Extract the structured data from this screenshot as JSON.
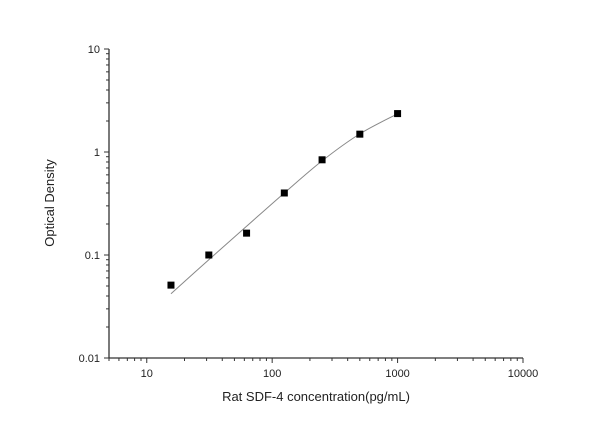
{
  "chart_data": {
    "type": "scatter",
    "title": "",
    "xlabel": "Rat SDF-4 concentration(pg/mL)",
    "ylabel": "Optical Density",
    "x_scale": "log",
    "y_scale": "log",
    "xlim": [
      5,
      10000
    ],
    "ylim": [
      0.01,
      10
    ],
    "x_ticks": [
      10,
      100,
      1000,
      10000
    ],
    "x_tick_labels": [
      "10",
      "100",
      "1000",
      "10000"
    ],
    "y_ticks": [
      0.01,
      0.1,
      1,
      10
    ],
    "y_tick_labels": [
      "0.01",
      "0.1",
      "1",
      "10"
    ],
    "grid": false,
    "series": [
      {
        "marker": "square",
        "color": "#000000",
        "x": [
          15.6,
          31.25,
          62.5,
          125,
          250,
          500,
          1000
        ],
        "y": [
          0.051,
          0.1,
          0.163,
          0.4,
          0.84,
          1.49,
          2.36
        ]
      }
    ],
    "fit_curve": {
      "color": "#888888",
      "x": [
        15.6,
        31.25,
        62.5,
        125,
        250,
        500,
        1000
      ],
      "y": [
        0.042,
        0.09,
        0.19,
        0.4,
        0.82,
        1.5,
        2.35
      ]
    }
  }
}
